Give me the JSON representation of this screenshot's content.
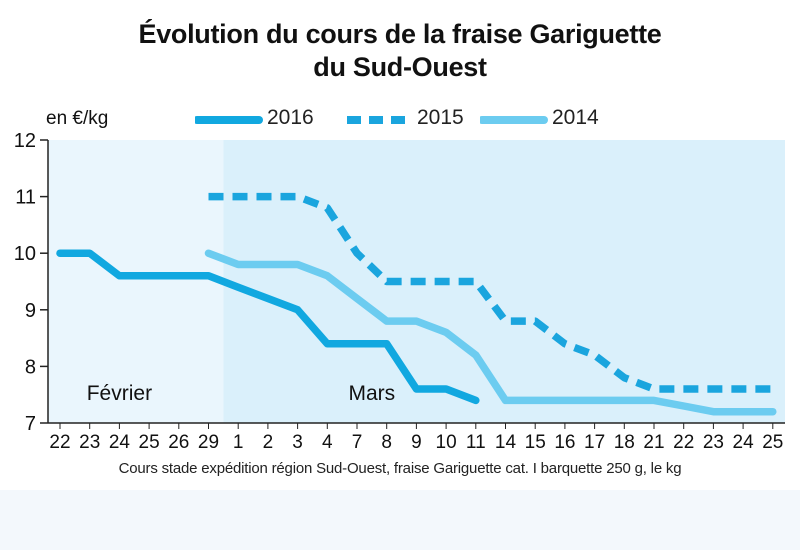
{
  "title_line1": "Évolution du cours de la fraise Gariguette",
  "title_line2": "du Sud-Ouest",
  "unit_label": "en €/kg",
  "footnote": "Cours stade expédition région Sud-Ouest, fraise Gariguette cat. I barquette 250 g, le kg",
  "colors": {
    "s2016": "#11a8e0",
    "s2015": "#1aa5de",
    "s2014": "#6cccf0",
    "plot_bg": "#daf0fb",
    "feb_bg": "#eaf6fd"
  },
  "chart_data": {
    "type": "line",
    "title": "Évolution du cours de la fraise Gariguette du Sud-Ouest",
    "ylabel": "en €/kg",
    "xlabel": "",
    "ylim": [
      7,
      12
    ],
    "yticks": [
      "7",
      "8",
      "9",
      "10",
      "11",
      "12"
    ],
    "categories": [
      "22",
      "23",
      "24",
      "25",
      "26",
      "29",
      "1",
      "2",
      "3",
      "4",
      "7",
      "8",
      "9",
      "10",
      "11",
      "14",
      "15",
      "16",
      "17",
      "18",
      "21",
      "22",
      "23",
      "24",
      "25"
    ],
    "month_labels": [
      {
        "text": "Février",
        "category_index": 2
      },
      {
        "text": "Mars",
        "category_index": 10.5
      }
    ],
    "series": [
      {
        "name": "2016",
        "style": "solid",
        "values": [
          10,
          10,
          9.6,
          9.6,
          9.6,
          9.6,
          9.4,
          9.2,
          9.0,
          8.4,
          8.4,
          8.4,
          7.6,
          7.6,
          7.4,
          null,
          null,
          null,
          null,
          null,
          null,
          null,
          null,
          null,
          null
        ]
      },
      {
        "name": "2015",
        "style": "dashed",
        "values": [
          null,
          null,
          null,
          null,
          null,
          11,
          11,
          11,
          11,
          10.8,
          10,
          9.5,
          9.5,
          9.5,
          9.5,
          8.8,
          8.8,
          8.4,
          8.2,
          7.8,
          7.6,
          7.6,
          7.6,
          7.6,
          7.6
        ]
      },
      {
        "name": "2014",
        "style": "solid",
        "values": [
          null,
          null,
          null,
          null,
          null,
          10,
          9.8,
          9.8,
          9.8,
          9.6,
          9.2,
          8.8,
          8.8,
          8.6,
          8.2,
          7.4,
          7.4,
          7.4,
          7.4,
          7.4,
          7.4,
          7.3,
          7.2,
          7.2,
          7.2
        ]
      }
    ],
    "legend": {
      "position": "top",
      "entries": [
        "2016",
        "2015",
        "2014"
      ]
    },
    "grid": false
  }
}
